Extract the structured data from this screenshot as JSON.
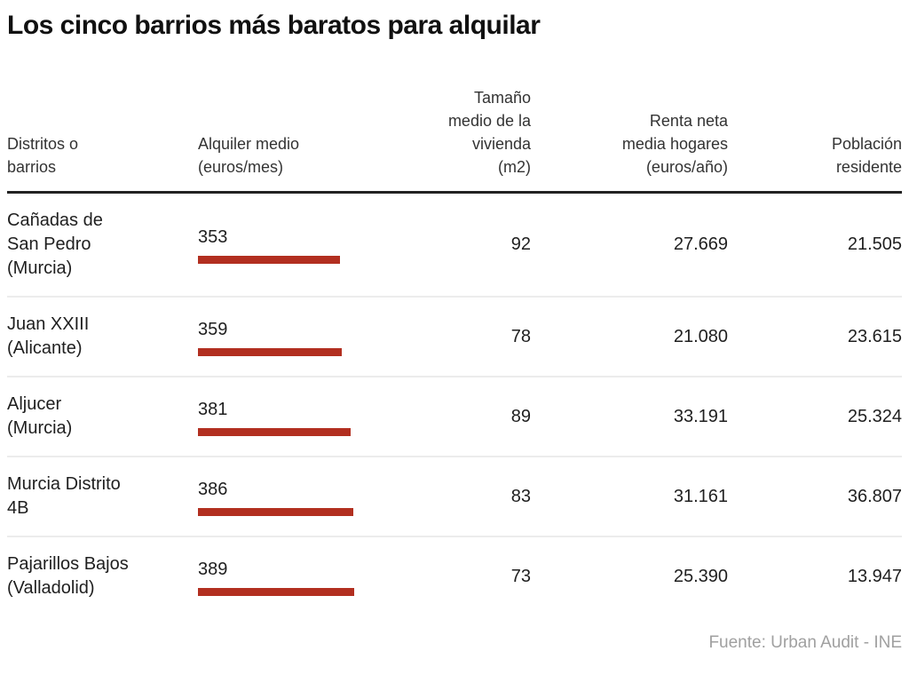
{
  "title": "Los cinco barrios más baratos para alquilar",
  "source": "Fuente: Urban Audit - INE",
  "chart_data": {
    "type": "bar",
    "title": "Los cinco barrios más baratos para alquilar",
    "bar_color": "#b22f20",
    "bar_column": "Alquiler medio (euros/mes)",
    "columns": [
      "Distritos o\nbarrios",
      "Alquiler medio\n(euros/mes)",
      "Tamaño\nmedio de la\nvivienda\n(m2)",
      "Renta neta\nmedia hogares\n(euros/año)",
      "Población\nresidente"
    ],
    "rows": [
      {
        "district": "Cañadas de\nSan Pedro\n(Murcia)",
        "rent": 353,
        "rent_display": "353",
        "size_m2": "92",
        "income_display": "27.669",
        "population_display": "21.505"
      },
      {
        "district": "Juan XXIII\n(Alicante)",
        "rent": 359,
        "rent_display": "359",
        "size_m2": "78",
        "income_display": "21.080",
        "population_display": "23.615"
      },
      {
        "district": "Aljucer\n(Murcia)",
        "rent": 381,
        "rent_display": "381",
        "size_m2": "89",
        "income_display": "33.191",
        "population_display": "25.324"
      },
      {
        "district": "Murcia Distrito\n4B",
        "rent": 386,
        "rent_display": "386",
        "size_m2": "83",
        "income_display": "31.161",
        "population_display": "36.807"
      },
      {
        "district": "Pajarillos Bajos\n(Valladolid)",
        "rent": 389,
        "rent_display": "389",
        "size_m2": "73",
        "income_display": "25.390",
        "population_display": "13.947"
      }
    ]
  }
}
